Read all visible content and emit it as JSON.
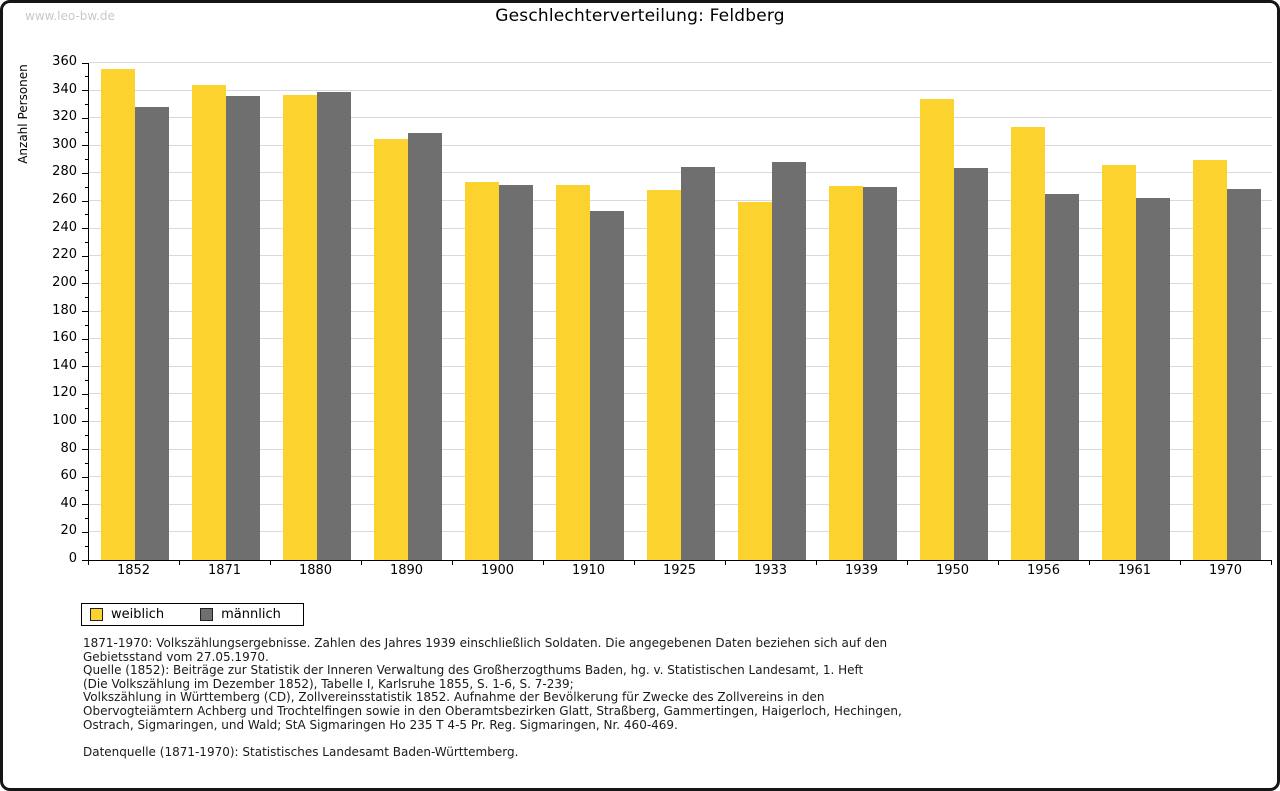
{
  "watermark": "www.leo-bw.de",
  "title": "Geschlechterverteilung: Feldberg",
  "chart_data": {
    "type": "bar",
    "title": "Geschlechterverteilung: Feldberg",
    "xlabel": "",
    "ylabel": "Anzahl Personen",
    "ylim": [
      0,
      360
    ],
    "ytick_step": 20,
    "yminor_step": 10,
    "grid": "horizontal",
    "legend_position": "bottom-left",
    "categories": [
      "1852",
      "1871",
      "1880",
      "1890",
      "1900",
      "1910",
      "1925",
      "1933",
      "1939",
      "1950",
      "1956",
      "1961",
      "1970"
    ],
    "series": [
      {
        "name": "weiblich",
        "color": "#fcd22e",
        "values": [
          356,
          344,
          337,
          305,
          274,
          272,
          268,
          259,
          271,
          334,
          314,
          286,
          290
        ]
      },
      {
        "name": "männlich",
        "color": "#6f6f6f",
        "values": [
          328,
          336,
          339,
          309,
          272,
          253,
          285,
          288,
          270,
          284,
          265,
          262,
          269
        ]
      }
    ]
  },
  "legend": {
    "items": [
      {
        "label": "weiblich",
        "color": "#fcd22e"
      },
      {
        "label": "männlich",
        "color": "#6f6f6f"
      }
    ]
  },
  "footer": {
    "lines": [
      "1871-1970: Volkszählungsergebnisse. Zahlen des Jahres 1939 einschließlich Soldaten. Die angegebenen Daten beziehen sich auf den",
      "Gebietsstand vom 27.05.1970.",
      "Quelle (1852): Beiträge zur Statistik der Inneren Verwaltung des Großherzogthums Baden, hg. v. Statistischen Landesamt, 1. Heft",
      "(Die Volkszählung im Dezember 1852), Tabelle I, Karlsruhe 1855, S. 1-6, S. 7-239;",
      "Volkszählung in Württemberg (CD), Zollvereinsstatistik 1852. Aufnahme der Bevölkerung für Zwecke des Zollvereins in den",
      "Obervogteiämtern Achberg und Trochtelfingen sowie in den Oberamtsbezirken Glatt, Straßberg, Gammertingen, Haigerloch, Hechingen,",
      "Ostrach, Sigmaringen, und Wald; StA Sigmaringen Ho 235 T 4-5 Pr. Reg. Sigmaringen, Nr. 460-469."
    ],
    "datasource": "Datenquelle (1871-1970): Statistisches Landesamt Baden-Württemberg."
  }
}
